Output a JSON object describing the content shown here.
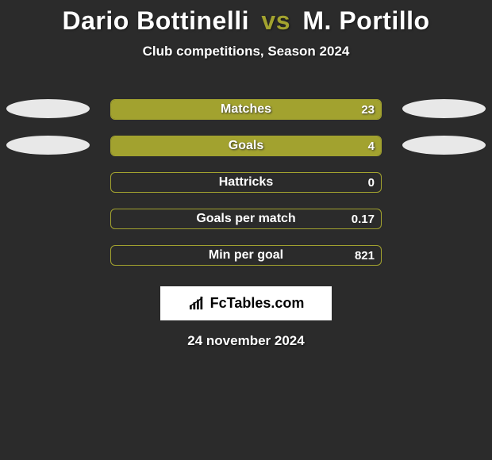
{
  "title": {
    "player1": "Dario Bottinelli",
    "vs": "vs",
    "player2": "M. Portillo"
  },
  "subtitle": "Club competitions, Season 2024",
  "colors": {
    "accent": "#a2a22f",
    "ellipse": "#e8e8e8",
    "bg": "#2b2b2b"
  },
  "rows": [
    {
      "label": "Matches",
      "value": "23",
      "fill_pct": 100,
      "show_left_ellipse": true,
      "show_right_ellipse": true
    },
    {
      "label": "Goals",
      "value": "4",
      "fill_pct": 100,
      "show_left_ellipse": true,
      "show_right_ellipse": true
    },
    {
      "label": "Hattricks",
      "value": "0",
      "fill_pct": 0,
      "show_left_ellipse": false,
      "show_right_ellipse": false
    },
    {
      "label": "Goals per match",
      "value": "0.17",
      "fill_pct": 0,
      "show_left_ellipse": false,
      "show_right_ellipse": false
    },
    {
      "label": "Min per goal",
      "value": "821",
      "fill_pct": 0,
      "show_left_ellipse": false,
      "show_right_ellipse": false
    }
  ],
  "logo": {
    "text_prefix": "Fc",
    "text_suffix": "Tables.com"
  },
  "date": "24 november 2024"
}
